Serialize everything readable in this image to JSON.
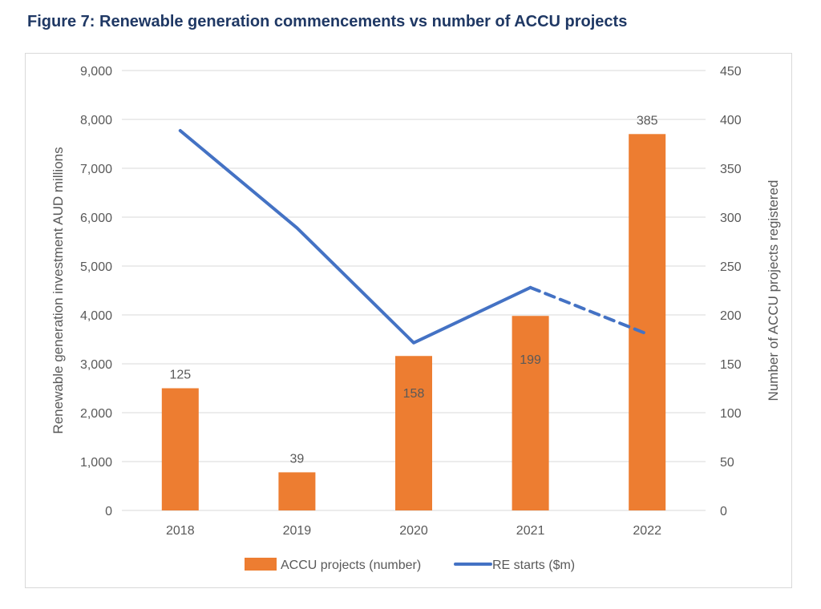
{
  "title": "Figure 7: Renewable generation commencements vs number of ACCU projects",
  "chart_data": {
    "type": "bar",
    "categories": [
      "2018",
      "2019",
      "2020",
      "2021",
      "2022"
    ],
    "series": [
      {
        "name": "ACCU projects (number)",
        "type": "bar",
        "axis": "right",
        "color": "#ED7D31",
        "values": [
          125,
          39,
          158,
          199,
          385
        ],
        "labels": [
          "125",
          "39",
          "158",
          "199",
          "385"
        ]
      },
      {
        "name": "RE starts ($m)",
        "type": "line",
        "axis": "left",
        "color": "#4472C4",
        "values": [
          7770,
          5780,
          3430,
          4560,
          3610
        ],
        "dashed_last_segment": true
      }
    ],
    "ylabel": "Renewable generation investment AUD millions",
    "y2label": "Number of ACCU projects registered",
    "ylim": [
      0,
      9000
    ],
    "y2lim": [
      0,
      450
    ],
    "yticks": [
      "0",
      "1,000",
      "2,000",
      "3,000",
      "4,000",
      "5,000",
      "6,000",
      "7,000",
      "8,000",
      "9,000"
    ],
    "y2ticks": [
      "0",
      "50",
      "100",
      "150",
      "200",
      "250",
      "300",
      "350",
      "400",
      "450"
    ],
    "grid": true,
    "legend": "bottom"
  }
}
